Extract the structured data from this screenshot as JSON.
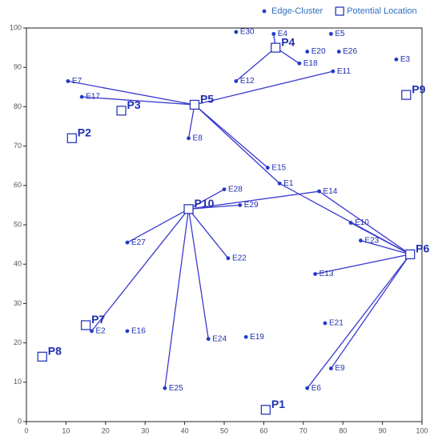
{
  "chart_data": {
    "type": "scatter",
    "xlim": [
      0,
      100
    ],
    "ylim": [
      0,
      100
    ],
    "xticks": [
      0,
      10,
      20,
      30,
      40,
      50,
      60,
      70,
      80,
      90,
      100
    ],
    "yticks": [
      0,
      10,
      20,
      30,
      40,
      50,
      60,
      70,
      80,
      90,
      100
    ],
    "legend": "top-right",
    "series": [
      {
        "name": "Edge-Cluster",
        "marker": "dot",
        "color": "#1f3cc8",
        "labels": [
          "E30",
          "E4",
          "E5",
          "E20",
          "E26",
          "E18",
          "E3",
          "E12",
          "E11",
          "E7",
          "E17",
          "E8",
          "E15",
          "E1",
          "E28",
          "E14",
          "E29",
          "E10",
          "E23",
          "E27",
          "E22",
          "E13",
          "E21",
          "E2",
          "E16",
          "E24",
          "E19",
          "E9",
          "E25",
          "E6"
        ],
        "x": [
          53,
          62.5,
          77,
          71,
          79,
          69,
          93.5,
          53,
          77.5,
          10.5,
          14,
          41,
          61,
          64,
          50,
          74,
          54,
          82,
          84.5,
          25.5,
          51,
          73,
          75.5,
          16.5,
          25.5,
          46,
          55.5,
          77,
          35,
          71
        ],
        "y": [
          99,
          98.5,
          98.5,
          94,
          94,
          91,
          92,
          86.5,
          89,
          86.5,
          82.5,
          72,
          64.5,
          60.5,
          59,
          58.5,
          55,
          50.5,
          46,
          45.5,
          41.5,
          37.5,
          25,
          23,
          23,
          21,
          21.5,
          13.5,
          8.5,
          8.5
        ]
      },
      {
        "name": "Potential Location",
        "marker": "square",
        "color": "#2a3ab8",
        "labels": [
          "P4",
          "P9",
          "P3",
          "P5",
          "P2",
          "P10",
          "P6",
          "P7",
          "P8",
          "P1"
        ],
        "x": [
          63,
          96,
          24,
          42.5,
          11.5,
          41,
          97,
          15,
          4,
          60.5
        ],
        "y": [
          95,
          83,
          79,
          80.5,
          72,
          54,
          42.5,
          24.5,
          16.5,
          3
        ]
      }
    ],
    "links": [
      [
        "P4",
        "E4"
      ],
      [
        "P4",
        "E18"
      ],
      [
        "P4",
        "E12"
      ],
      [
        "P5",
        "E7"
      ],
      [
        "P5",
        "E17"
      ],
      [
        "P5",
        "E11"
      ],
      [
        "P5",
        "E8"
      ],
      [
        "P5",
        "E15"
      ],
      [
        "P5",
        "E1"
      ],
      [
        "P6",
        "E1"
      ],
      [
        "P6",
        "E14"
      ],
      [
        "P6",
        "E10"
      ],
      [
        "P6",
        "E23"
      ],
      [
        "P6",
        "E13"
      ],
      [
        "P6",
        "E9"
      ],
      [
        "P6",
        "E6"
      ],
      [
        "P10",
        "E28"
      ],
      [
        "P10",
        "E29"
      ],
      [
        "P10",
        "E14"
      ],
      [
        "P10",
        "E27"
      ],
      [
        "P10",
        "E22"
      ],
      [
        "P10",
        "E24"
      ],
      [
        "P10",
        "E25"
      ],
      [
        "P10",
        "E2"
      ]
    ],
    "link_color": "#3a3ad0"
  }
}
